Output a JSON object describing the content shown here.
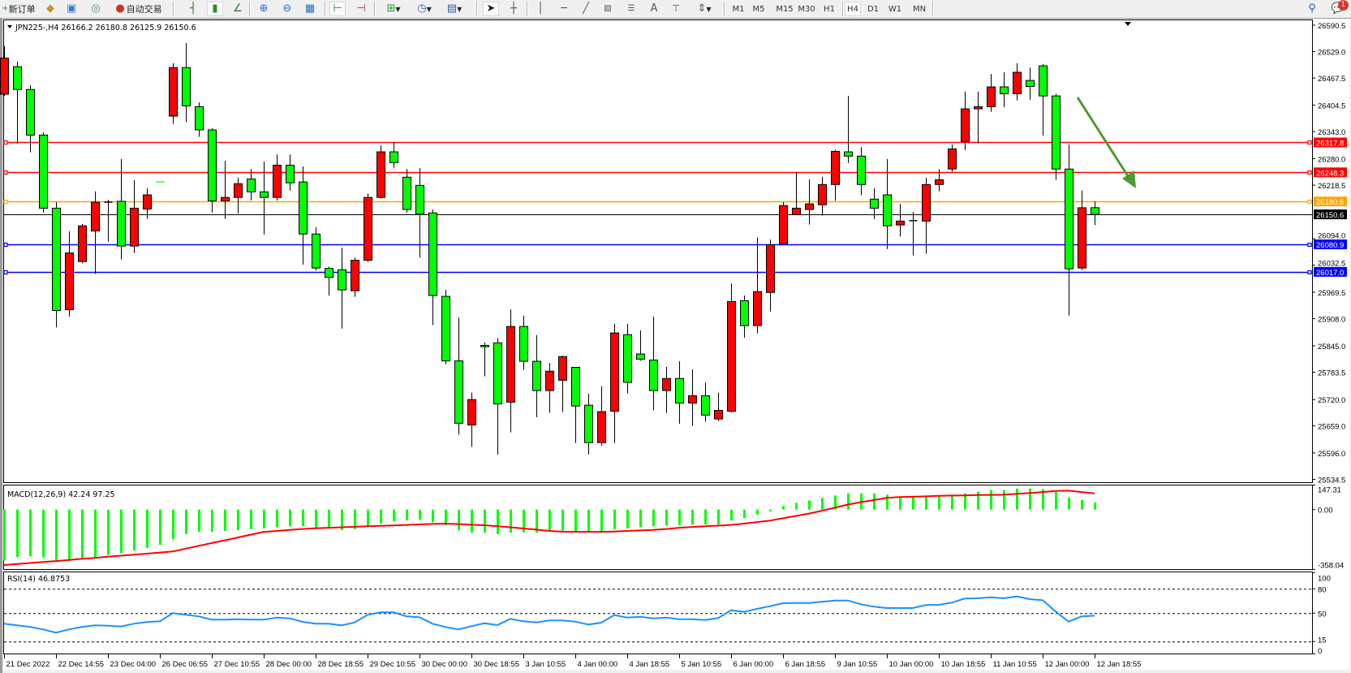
{
  "toolbar": {
    "new_order_label": "新订单",
    "auto_trading_label": "自动交易",
    "timeframes": [
      "M1",
      "M5",
      "M15",
      "M30",
      "H1",
      "H4",
      "D1",
      "W1",
      "MN"
    ],
    "active_timeframe": "H4",
    "notification_count": "1",
    "icons": [
      "new-order-icon",
      "market-watch-icon",
      "navigator-icon",
      "signal-icon",
      "auto-trading-icon",
      "bar-chart-icon",
      "candlestick-icon",
      "line-chart-icon",
      "zoom-in-icon",
      "zoom-out-icon",
      "tile-windows-icon",
      "auto-scroll-icon",
      "chart-shift-icon",
      "new-chart-icon",
      "periods-icon",
      "templates-icon",
      "cursor-icon",
      "crosshair-icon",
      "vertical-line-icon",
      "horizontal-line-icon",
      "trendline-icon",
      "fibonacci-icon",
      "fibo-fan-icon",
      "text-icon",
      "text-label-icon",
      "arrows-icon",
      "search-icon",
      "notification-icon"
    ]
  },
  "chart": {
    "header": "JPN225-,H4  26166.2 26180.8 26125.9 26150.6",
    "bull_color": "#ff0000",
    "bear_color": "#00ff00",
    "price_axis_labels": [
      "26590.5",
      "26529.0",
      "26467.5",
      "26404.5",
      "26343.0",
      "26280.0",
      "26218.5",
      "26094.0",
      "26032.5",
      "25969.5",
      "25908.0",
      "25845.0",
      "25783.5",
      "25720.0",
      "25659.0",
      "25596.0",
      "25534.5"
    ],
    "horizontal_lines": [
      {
        "price": "26317.8",
        "color": "#ff0000"
      },
      {
        "price": "26248.3",
        "color": "#ff0000"
      },
      {
        "price": "26180.6",
        "color": "#ffa500"
      },
      {
        "price": "26080.9",
        "color": "#0000ff"
      },
      {
        "price": "26017.0",
        "color": "#0000ff"
      }
    ],
    "bid_line": {
      "price": "26150.6",
      "color": "#000000"
    },
    "arrow_color": "#4f9a2f",
    "time_labels": [
      "21 Dec 2022",
      "22 Dec 14:55",
      "23 Dec 04:00",
      "26 Dec 06:55",
      "27 Dec 10:55",
      "28 Dec 00:00",
      "28 Dec 18:55",
      "29 Dec 10:55",
      "30 Dec 00:00",
      "30 Dec 18:55",
      "3 Jan 10:55",
      "4 Jan 00:00",
      "4 Jan 18:55",
      "5 Jan 10:55",
      "6 Jan 00:00",
      "6 Jan 18:55",
      "9 Jan 10:55",
      "10 Jan 00:00",
      "10 Jan 18:55",
      "11 Jan 10:55",
      "12 Jan 00:00",
      "12 Jan 18:55"
    ]
  },
  "macd": {
    "label": "MACD(12,26,9) 42.24 97.25",
    "axis_labels": [
      "147.31",
      "0.00",
      "-358.04"
    ],
    "hist_color": "#00ff00",
    "signal_color": "#ff0000"
  },
  "rsi": {
    "label": "RSI(14) 46.8753",
    "axis_labels": [
      "100",
      "80",
      "50",
      "15",
      "0"
    ],
    "line_color": "#1e90ff"
  },
  "chart_data": {
    "type": "candlestick",
    "symbol": "JPN225-",
    "timeframe": "H4",
    "ylim": [
      25534.5,
      26590.5
    ],
    "ohlc": [
      [
        26430,
        26542,
        26426,
        26514
      ],
      [
        26494,
        26506,
        26315,
        26441
      ],
      [
        26441,
        26451,
        26295,
        26335
      ],
      [
        26335,
        26341,
        26155,
        26165
      ],
      [
        26165,
        26179,
        25888,
        25927
      ],
      [
        25929,
        26111,
        25913,
        26061
      ],
      [
        26041,
        26128,
        26037,
        26124
      ],
      [
        26112,
        26204,
        26012,
        26179
      ],
      [
        26179,
        26185,
        26087,
        26179
      ],
      [
        26181,
        26279,
        26046,
        26077
      ],
      [
        26077,
        26230,
        26061,
        26165
      ],
      [
        26163,
        26211,
        26140,
        26196
      ],
      [
        26226.5,
        26226.5,
        26226,
        26226
      ],
      [
        26379,
        26502,
        26361,
        26492
      ],
      [
        26492,
        26549,
        26365,
        26403
      ],
      [
        26401,
        26411,
        26331,
        26347
      ],
      [
        26347,
        26351,
        26155,
        26182
      ],
      [
        26182,
        26275,
        26140,
        26190
      ],
      [
        26190,
        26236,
        26153,
        26222
      ],
      [
        26233,
        26256,
        26183,
        26203
      ],
      [
        26203,
        26273,
        26104,
        26190
      ],
      [
        26190,
        26290,
        26183,
        26265
      ],
      [
        26265,
        26290,
        26206,
        26224
      ],
      [
        26226,
        26262,
        26034,
        26105
      ],
      [
        26105,
        26121,
        26020,
        26026
      ],
      [
        26025,
        26029,
        25962,
        26004
      ],
      [
        26022,
        26073,
        25885,
        25975
      ],
      [
        25973,
        26050,
        25959,
        26044
      ],
      [
        26044,
        26199,
        26040,
        26190
      ],
      [
        26190,
        26311,
        26187,
        26296
      ],
      [
        26296,
        26318,
        26259,
        26271
      ],
      [
        26237,
        26256,
        26155,
        26162
      ],
      [
        26218,
        26258,
        26050,
        26151
      ],
      [
        26154,
        26162,
        25893,
        25962
      ],
      [
        25960,
        25975,
        25802,
        25810
      ],
      [
        25810,
        25911,
        25638,
        25665
      ],
      [
        25661,
        25736,
        25610,
        25720
      ],
      [
        25846,
        25853,
        25774,
        25843
      ],
      [
        25852,
        25863,
        25592,
        25710
      ],
      [
        25714,
        25930,
        25644,
        25890
      ],
      [
        25890,
        25915,
        25789,
        25809
      ],
      [
        25809,
        25870,
        25679,
        25741
      ],
      [
        25741,
        25805,
        25689,
        25786
      ],
      [
        25765,
        25822,
        25691,
        25820
      ],
      [
        25795,
        25796,
        25619,
        25705
      ],
      [
        25707,
        25734,
        25592,
        25620
      ],
      [
        25620,
        25751,
        25613,
        25692
      ],
      [
        25693,
        25896,
        25619,
        25875
      ],
      [
        25871,
        25896,
        25734,
        25760
      ],
      [
        25826,
        25881,
        25810,
        25814
      ],
      [
        25812,
        25913,
        25695,
        25741
      ],
      [
        25741,
        25796,
        25689,
        25769
      ],
      [
        25769,
        25809,
        25664,
        25712
      ],
      [
        25712,
        25790,
        25659,
        25729
      ],
      [
        25729,
        25760,
        25668,
        25684
      ],
      [
        25675,
        25736,
        25670,
        25695
      ],
      [
        25693,
        25990,
        25690,
        25948
      ],
      [
        25950,
        25962,
        25864,
        25892
      ],
      [
        25892,
        26097,
        25874,
        25971
      ],
      [
        25969,
        26092,
        25925,
        26080
      ],
      [
        26082,
        26179,
        26080,
        26171
      ],
      [
        26150,
        26248,
        26149,
        26165
      ],
      [
        26162,
        26232,
        26127,
        26175
      ],
      [
        26173,
        26238,
        26148,
        26220
      ],
      [
        26220,
        26301,
        26182,
        26297
      ],
      [
        26296,
        26426,
        26270,
        26286
      ],
      [
        26286,
        26307,
        26195,
        26220
      ],
      [
        26186,
        26211,
        26140,
        26165
      ],
      [
        26196,
        26279,
        26070,
        26124
      ],
      [
        26126,
        26175,
        26099,
        26135
      ],
      [
        26136,
        26156,
        26055,
        26136
      ],
      [
        26135,
        26236,
        26059,
        26220
      ],
      [
        26220,
        26256,
        26204,
        26231
      ],
      [
        26256,
        26313,
        26250,
        26303
      ],
      [
        26320,
        26436,
        26300,
        26396
      ],
      [
        26396,
        26436,
        26316,
        26401
      ],
      [
        26401,
        26477,
        26389,
        26447
      ],
      [
        26447,
        26481,
        26400,
        26431
      ],
      [
        26431,
        26502,
        26416,
        26481
      ],
      [
        26462,
        26492,
        26417,
        26448
      ],
      [
        26496,
        26500,
        26334,
        26426
      ],
      [
        26426,
        26431,
        26231,
        26256
      ],
      [
        26256,
        26313,
        25915,
        26024
      ],
      [
        26026,
        26206,
        26021,
        26166
      ],
      [
        26166.2,
        26180.8,
        26125.9,
        26150.6
      ]
    ],
    "macd_histogram": [
      -305,
      -284,
      -280,
      -285,
      -305,
      -308,
      -295,
      -285,
      -271,
      -261,
      -245,
      -230,
      -212,
      -177,
      -147,
      -133,
      -133,
      -128,
      -123,
      -118,
      -113,
      -105,
      -100,
      -99,
      -112,
      -112,
      -123,
      -117,
      -100,
      -84,
      -71,
      -63,
      -60,
      -76,
      -94,
      -125,
      -138,
      -138,
      -147,
      -138,
      -138,
      -138,
      -126,
      -126,
      -130,
      -130,
      -130,
      -118,
      -113,
      -105,
      -99,
      -94,
      -94,
      -91,
      -89,
      -89,
      -65,
      -50,
      -31,
      -11,
      21,
      40,
      55,
      70,
      84,
      97,
      97,
      97,
      89,
      78,
      78,
      78,
      86,
      86,
      97,
      107,
      117,
      117,
      126,
      126,
      122,
      107,
      73,
      57,
      42.24
    ],
    "macd_signal": [
      -332,
      -326,
      -320,
      -314,
      -308,
      -302,
      -295,
      -289,
      -282,
      -276,
      -270,
      -264,
      -257,
      -251,
      -234,
      -217,
      -200,
      -184,
      -167,
      -150,
      -134,
      -128,
      -122,
      -116,
      -112,
      -109,
      -106,
      -103,
      -100,
      -97,
      -95,
      -92,
      -89,
      -86,
      -84,
      -87,
      -91,
      -94,
      -100,
      -106,
      -113,
      -120,
      -128,
      -132,
      -133,
      -133,
      -133,
      -131,
      -128,
      -125,
      -122,
      -116,
      -109,
      -104,
      -100,
      -96,
      -92,
      -84,
      -75,
      -66,
      -52,
      -38,
      -24,
      -7,
      11,
      30,
      44,
      57,
      70,
      75,
      77,
      79,
      82,
      84,
      85,
      87,
      88,
      89,
      94,
      99,
      105,
      112,
      113,
      105,
      97.25
    ],
    "macd_range": [
      -358.04,
      147.31
    ],
    "rsi": [
      37,
      35,
      33,
      30,
      26,
      30,
      33,
      35,
      34.6,
      33.6,
      37,
      39,
      40,
      50,
      48,
      46,
      42,
      42,
      42.6,
      42,
      42,
      44.6,
      43.6,
      39.3,
      37,
      37,
      35,
      38.6,
      48,
      51,
      51,
      46,
      45,
      37,
      33,
      30,
      34,
      37.6,
      35.3,
      43,
      40,
      38.6,
      41,
      41,
      39.6,
      36,
      38.3,
      47.6,
      44.6,
      45.6,
      43.6,
      44.6,
      42.6,
      42.6,
      41.6,
      44,
      53.6,
      51.6,
      55.3,
      58.6,
      62.3,
      62.6,
      62.6,
      64,
      65.6,
      65.6,
      61,
      58,
      56.3,
      56.3,
      56.3,
      60,
      60.3,
      63,
      68,
      68.3,
      69.6,
      68.3,
      70.6,
      67.3,
      66,
      52,
      39.6,
      46,
      46.8753
    ],
    "rsi_levels": [
      80,
      50,
      15
    ],
    "rsi_range": [
      0,
      100
    ]
  }
}
